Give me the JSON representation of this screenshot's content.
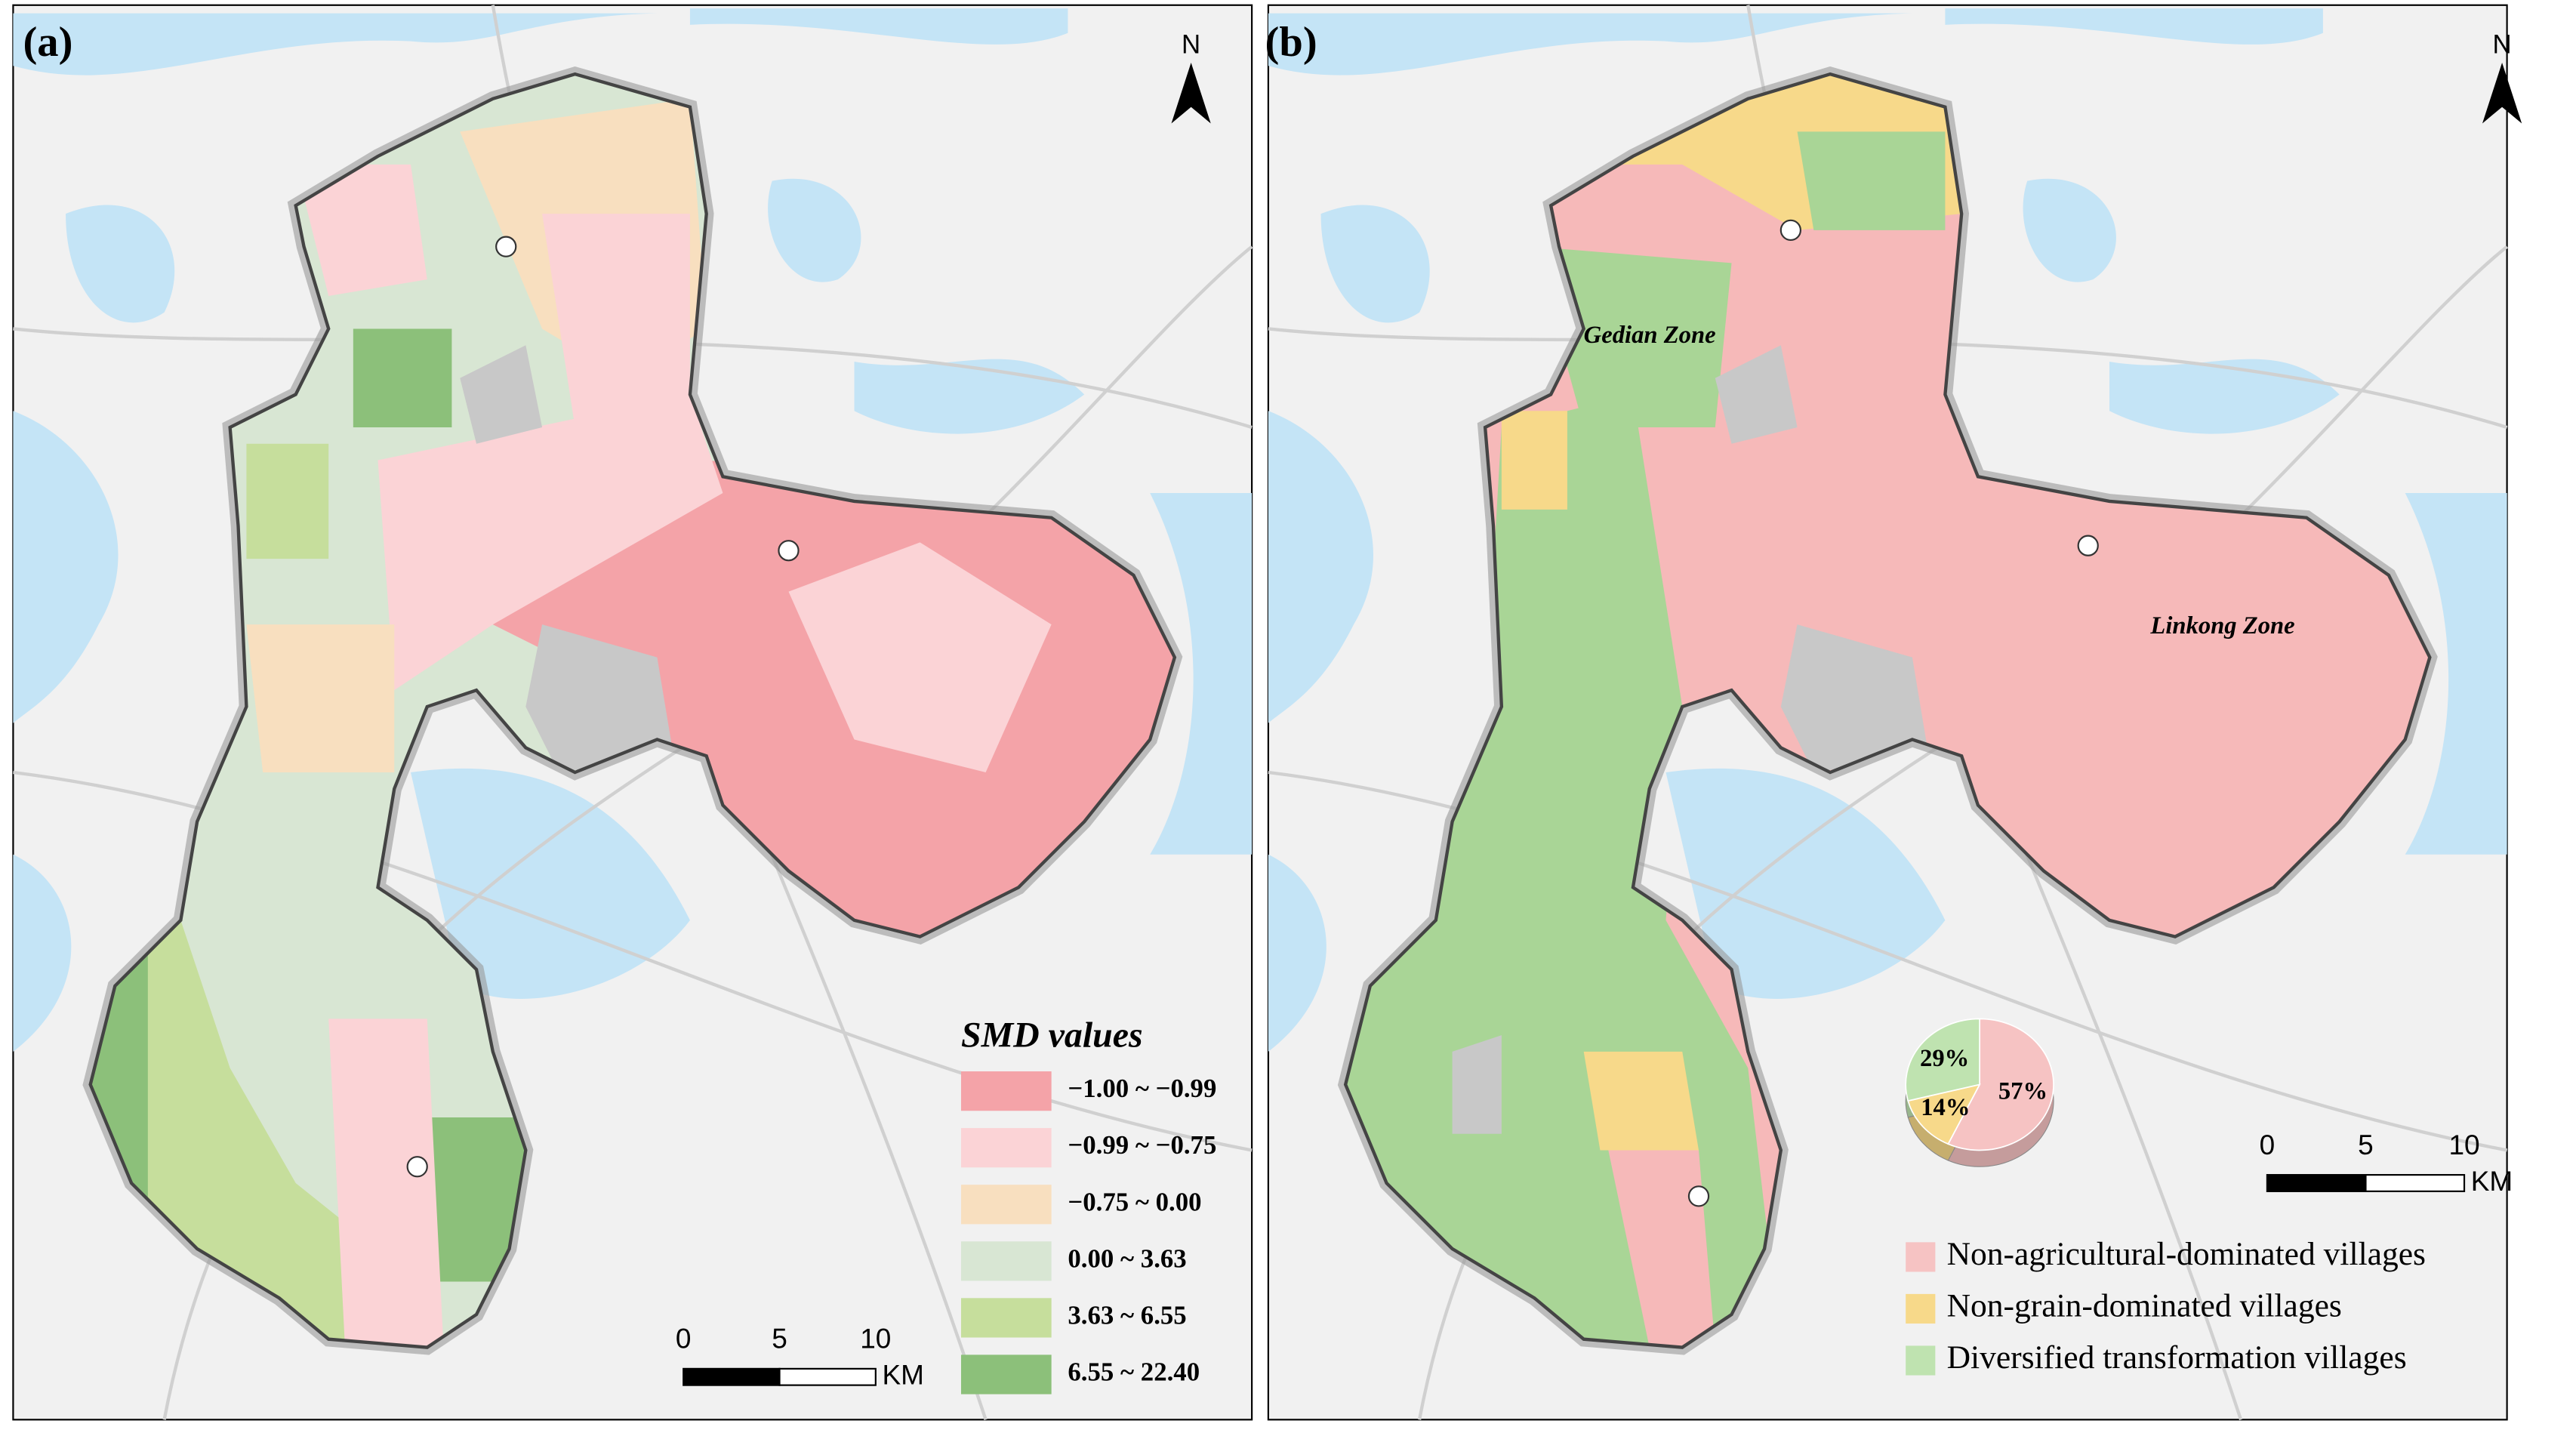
{
  "map_a": {
    "label": "(a)",
    "north": "N",
    "legend": {
      "title": "SMD values",
      "items": [
        {
          "label": "−1.00 ~ −0.99",
          "color": "#f4a3a8"
        },
        {
          "label": "−0.99 ~ −0.75",
          "color": "#fbd3d6"
        },
        {
          "label": "−0.75 ~ 0.00",
          "color": "#f8dfbf"
        },
        {
          "label": "0.00 ~ 3.63",
          "color": "#d8e6d3"
        },
        {
          "label": "3.63 ~ 6.55",
          "color": "#c6de9c"
        },
        {
          "label": "6.55 ~ 22.40",
          "color": "#8cc07a"
        }
      ]
    },
    "scale_bar": {
      "ticks": [
        0,
        5,
        10
      ],
      "unit": "KM"
    }
  },
  "map_b": {
    "label": "(b)",
    "north": "N",
    "zones": [
      "Gedian Zone",
      "Linkong Zone"
    ],
    "scale_bar": {
      "ticks": [
        0,
        5,
        10
      ],
      "unit": "KM"
    }
  },
  "chart_data": {
    "type": "pie",
    "categories": [
      "Non-agricultural-dominated villages",
      "Non-grain-dominated villages",
      "Diversified transformation villages"
    ],
    "values": [
      57,
      14,
      29
    ],
    "value_labels": [
      "57%",
      "14%",
      "29%"
    ],
    "colors": [
      "#f6c3c3",
      "#f7d98a",
      "#bfe3b0"
    ]
  }
}
